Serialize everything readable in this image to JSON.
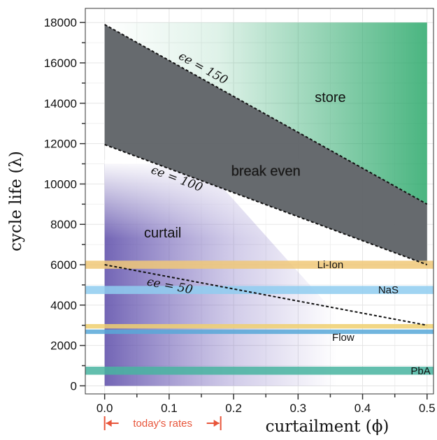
{
  "chart_data": {
    "type": "line",
    "xlabel": "curtailment (ϕ)",
    "ylabel": "cycle life (λ)",
    "xlim": [
      -0.03,
      0.51
    ],
    "ylim": [
      -400,
      18700
    ],
    "x_ticks": [
      0.0,
      0.1,
      0.2,
      0.3,
      0.4,
      0.5
    ],
    "x_tick_labels": [
      "0.0",
      "0.1",
      "0.2",
      "0.3",
      "0.4",
      "0.5"
    ],
    "y_ticks": [
      0,
      2000,
      4000,
      6000,
      8000,
      10000,
      12000,
      14000,
      16000,
      18000
    ],
    "y_tick_labels": [
      "0",
      "2000",
      "4000",
      "6000",
      "8000",
      "10000",
      "12000",
      "14000",
      "16000",
      "18000"
    ],
    "grid": true,
    "series": [
      {
        "label": "ϵe = 150",
        "x": [
          0.0,
          0.5
        ],
        "y": [
          17900,
          9000
        ]
      },
      {
        "label": "ϵe = 100",
        "x": [
          0.0,
          0.5
        ],
        "y": [
          11950,
          6000
        ]
      },
      {
        "label": "ϵe = 50",
        "x": [
          0.0,
          0.5
        ],
        "y": [
          6000,
          3000
        ]
      }
    ],
    "regions": [
      {
        "label": "store",
        "color": "#2aa86a"
      },
      {
        "label": "break even",
        "color": "#5e6266"
      },
      {
        "label": "curtail",
        "color": "#6e5fb0"
      }
    ],
    "technology_bands": [
      {
        "label": "Li-Ion",
        "y": 6000,
        "color": "#f0c878"
      },
      {
        "label": "NaS",
        "y": 4750,
        "color": "#8fcdf0"
      },
      {
        "label": "Flow",
        "y": 2950,
        "color": "#f0d070"
      },
      {
        "label": "Flow",
        "y": 2680,
        "color": "#58a8d8"
      },
      {
        "label": "PbA",
        "y": 750,
        "color": "#48b4a0"
      }
    ],
    "annotation": {
      "label": "today's rates",
      "x_range": [
        0.0,
        0.18
      ],
      "color": "#e8553a"
    }
  }
}
